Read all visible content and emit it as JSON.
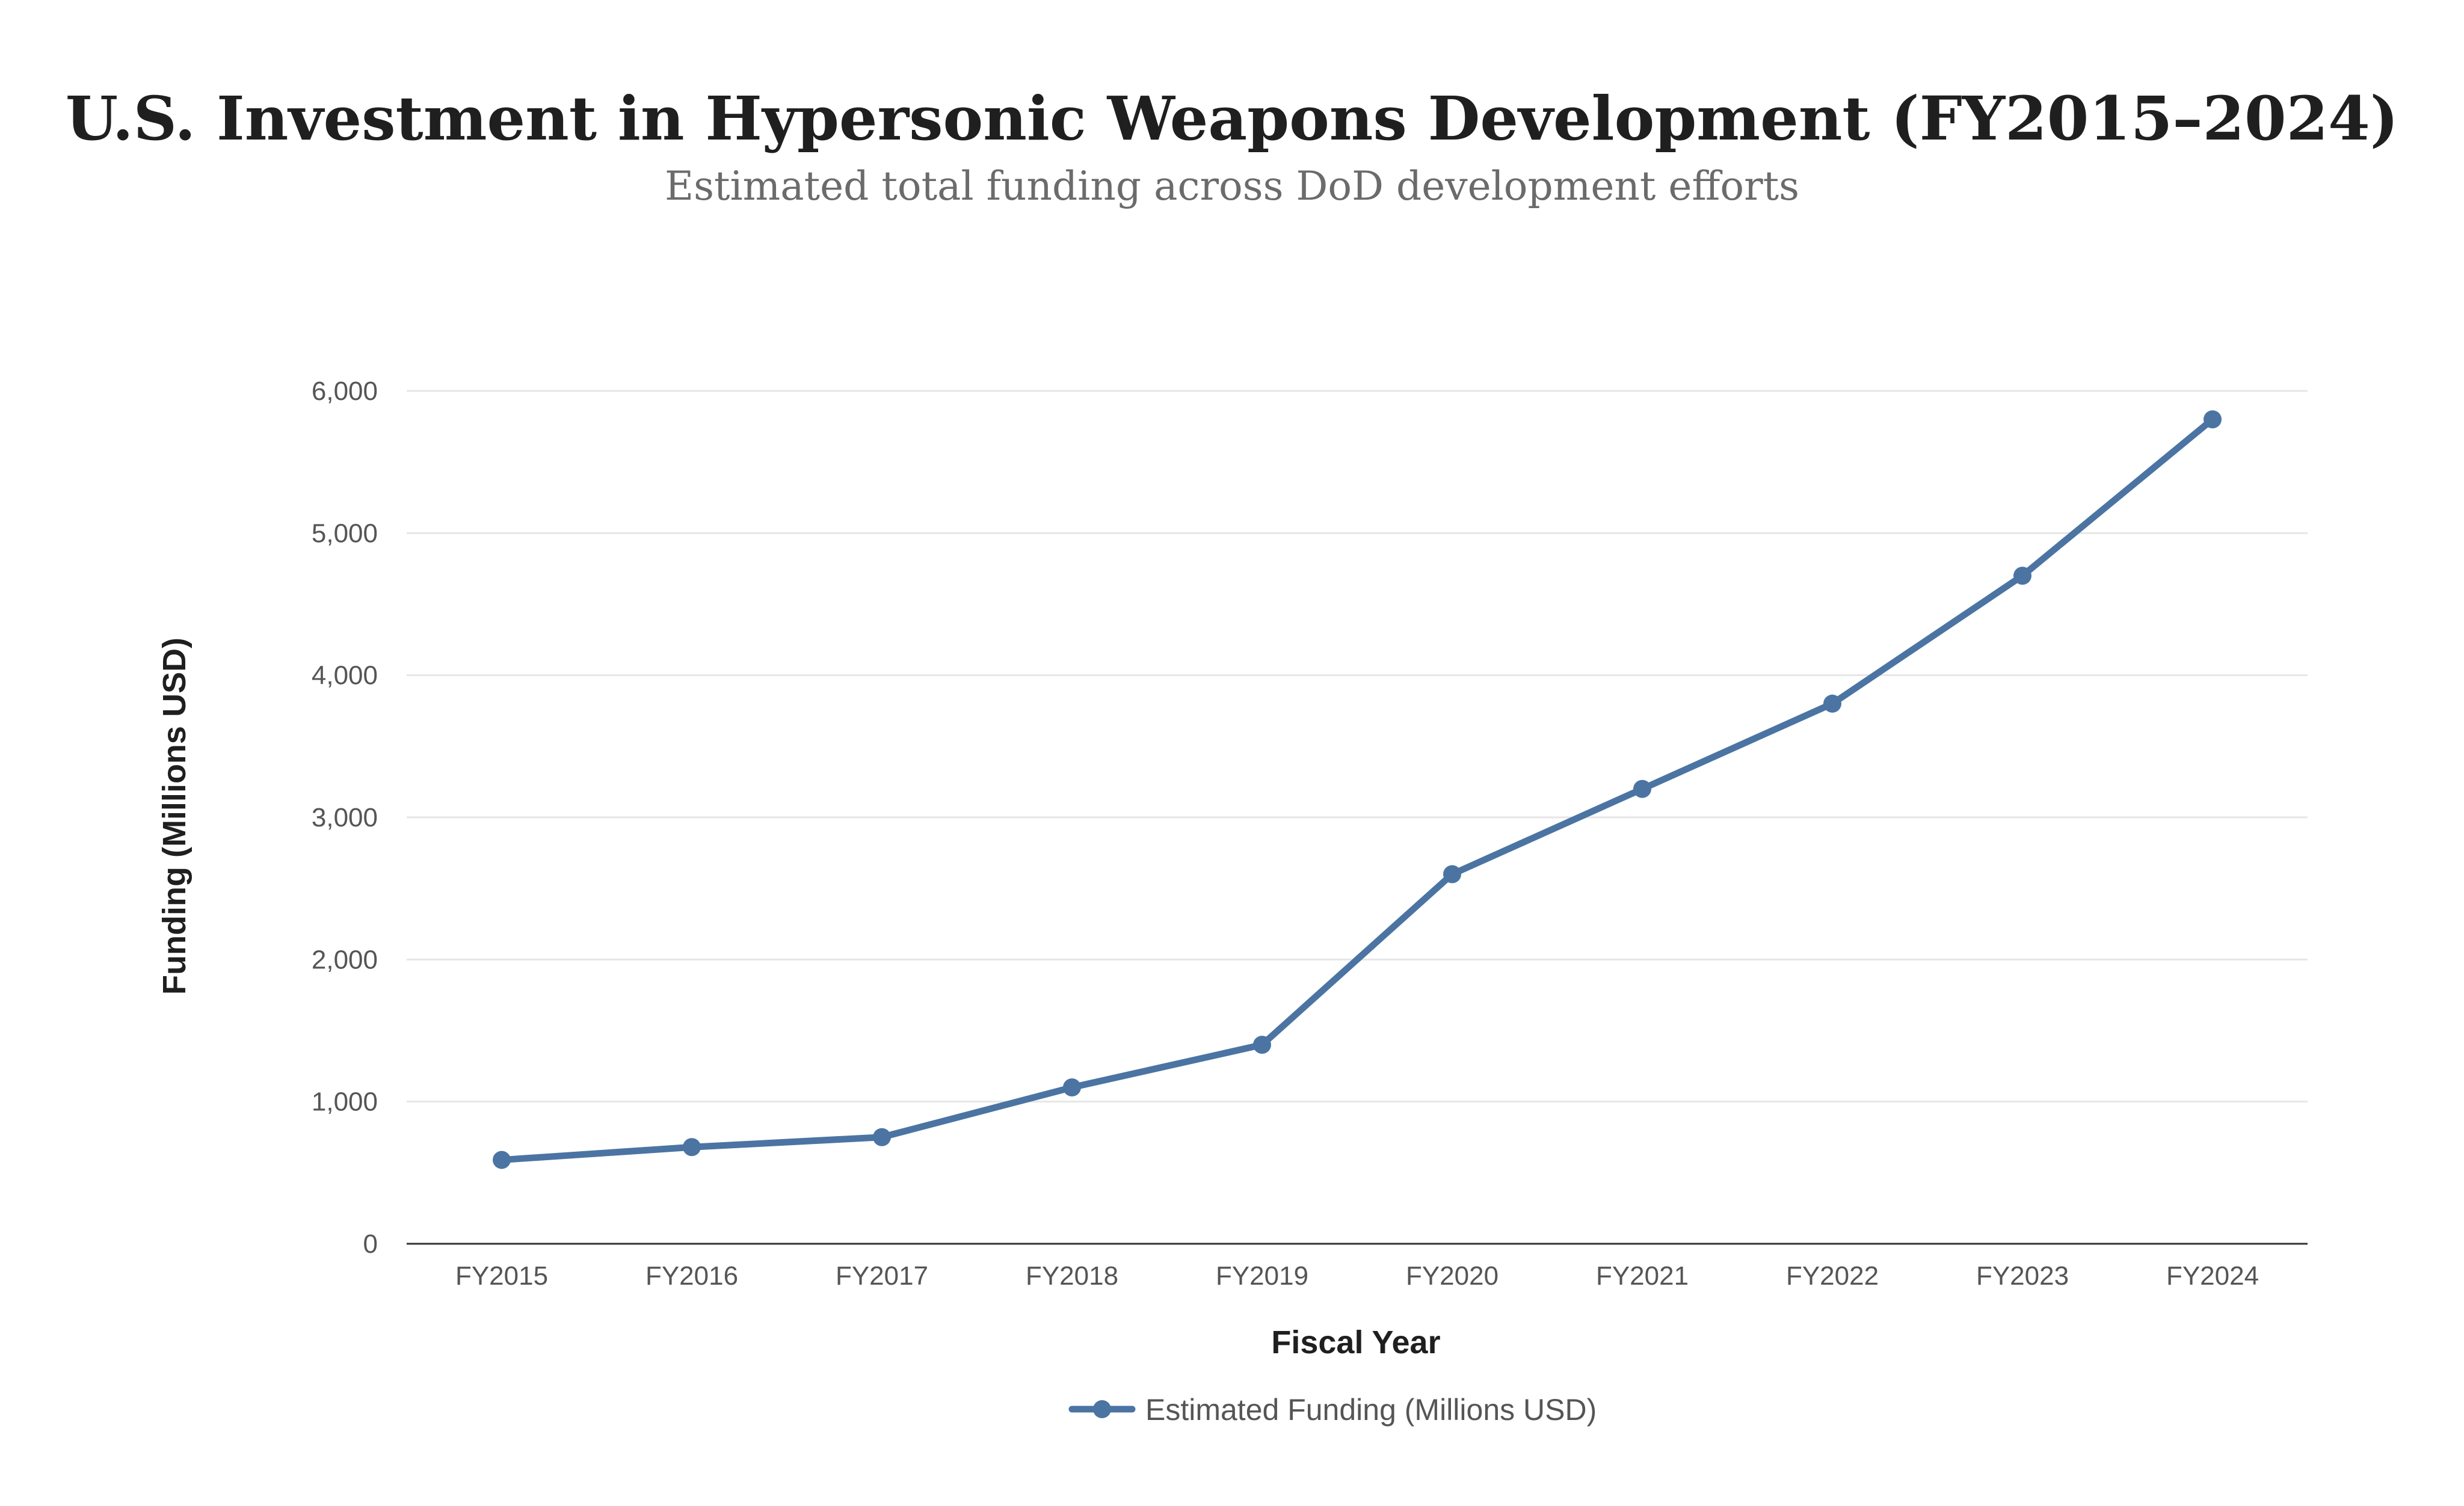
{
  "colors": {
    "series": "#4b74a3",
    "grid": "#e6e6e6",
    "axis": "#333333"
  },
  "chart_data": {
    "type": "line",
    "title": "U.S. Investment in Hypersonic Weapons Development (FY2015–2024)",
    "subtitle": "Estimated total funding across DoD development efforts",
    "xlabel": "Fiscal Year",
    "ylabel": "Funding (Millions USD)",
    "categories": [
      "FY2015",
      "FY2016",
      "FY2017",
      "FY2018",
      "FY2019",
      "FY2020",
      "FY2021",
      "FY2022",
      "FY2023",
      "FY2024"
    ],
    "series": [
      {
        "name": "Estimated Funding (Millions USD)",
        "values": [
          590,
          680,
          750,
          1100,
          1400,
          2600,
          3200,
          3800,
          4700,
          5800
        ]
      }
    ],
    "ylim": [
      0,
      6000
    ],
    "yticks": [
      0,
      1000,
      2000,
      3000,
      4000,
      5000,
      6000
    ],
    "ytick_labels": [
      "0",
      "1,000",
      "2,000",
      "3,000",
      "4,000",
      "5,000",
      "6,000"
    ],
    "grid": true,
    "legend_position": "bottom-center"
  }
}
